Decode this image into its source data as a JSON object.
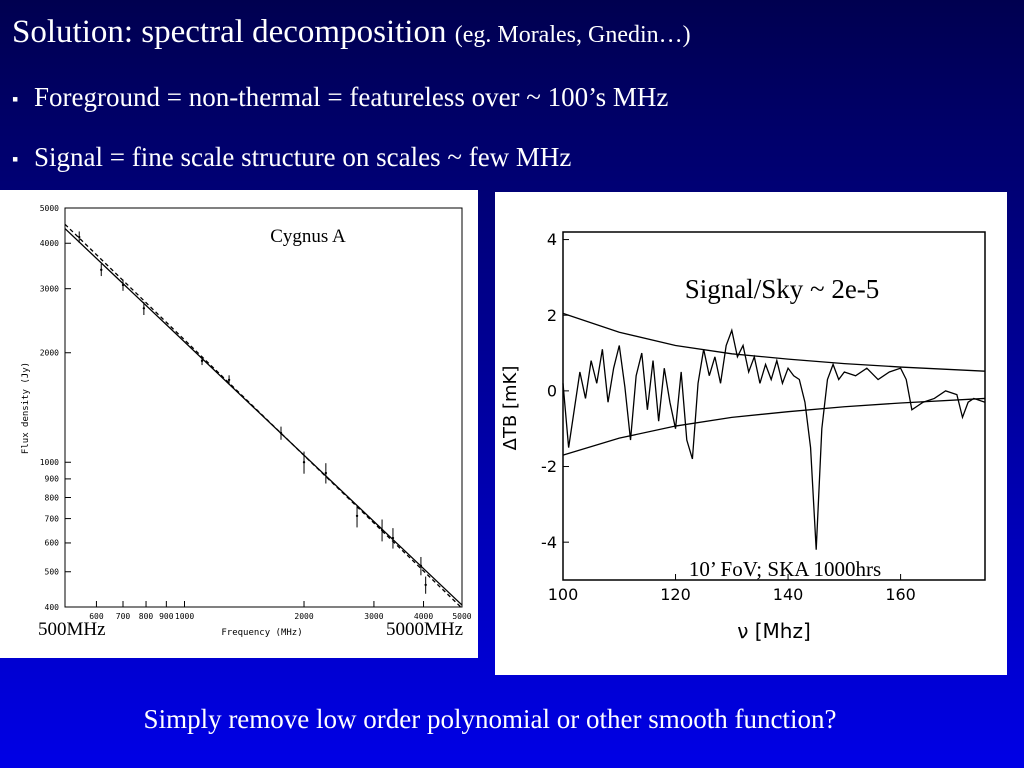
{
  "slide": {
    "title": "Solution: spectral decomposition",
    "title_note": "(eg. Morales, Gnedin…)",
    "bullets": [
      "Foreground = non-thermal = featureless over ~ 100’s MHz",
      "Signal = fine scale structure on scales ~ few MHz"
    ],
    "footer": "Simply remove low order polynomial or other smooth function?"
  },
  "chart_data": [
    {
      "type": "scatter",
      "xlabel": "Frequency (MHz)",
      "ylabel": "Flux density (Jy)",
      "annotation": "Cygnus A",
      "x_start_label": "500MHz",
      "x_end_label": "5000MHz",
      "log_x": true,
      "log_y": true,
      "color": "#000000",
      "x": [
        543,
        617,
        700,
        790,
        1107,
        1295,
        1750,
        2000,
        2270,
        2720,
        3145,
        3350,
        3940,
        4050
      ],
      "values": [
        4160,
        3380,
        3070,
        2650,
        1900,
        1684,
        1203,
        1000,
        934,
        712,
        651,
        619,
        519,
        460
      ],
      "errors": [
        150,
        130,
        110,
        110,
        50,
        50,
        50,
        70,
        60,
        50,
        45,
        40,
        30,
        25
      ],
      "fits": [
        {
          "x": [
            500,
            5000
          ],
          "values": [
            4390,
            405
          ],
          "dashed": false
        },
        {
          "x": [
            500,
            5000
          ],
          "values": [
            4510,
            397
          ],
          "dashed": true
        }
      ],
      "xlim": [
        500,
        5000
      ],
      "ylim": [
        400,
        5000
      ],
      "xticks": [
        600,
        700,
        800,
        900,
        1000,
        2000,
        3000,
        4000,
        5000
      ],
      "yticks": [
        400,
        500,
        600,
        700,
        800,
        900,
        1000,
        2000,
        3000,
        4000,
        5000
      ]
    },
    {
      "type": "line",
      "xlabel": "ν [Mhz]",
      "ylabel": "ΔTB [mK]",
      "annotation": "Signal/Sky ~ 2e-5",
      "note": "10’ FoV;  SKA 1000hrs",
      "series": [
        {
          "color": "#000000",
          "x": [
            100,
            101,
            102,
            103,
            104,
            105,
            106,
            107,
            108,
            109,
            110,
            111,
            112,
            113,
            114,
            115,
            116,
            117,
            118,
            119,
            120,
            121,
            122,
            123,
            124,
            125,
            126,
            127,
            128,
            129,
            130,
            131,
            132,
            133,
            134,
            135,
            136,
            137,
            138,
            139,
            140,
            141,
            142,
            143,
            144,
            145,
            146,
            147,
            148,
            149,
            150,
            152,
            154,
            156,
            158,
            160,
            161,
            162,
            163,
            164,
            166,
            168,
            170,
            171,
            172,
            173,
            175
          ],
          "values": [
            0.2,
            -1.5,
            -0.5,
            0.5,
            -0.2,
            0.8,
            0.2,
            1.1,
            -0.3,
            0.6,
            1.2,
            0.1,
            -1.3,
            0.4,
            1.0,
            -0.5,
            0.8,
            -0.8,
            0.6,
            -0.3,
            -1.0,
            0.5,
            -1.3,
            -1.8,
            0.2,
            1.1,
            0.4,
            0.9,
            0.2,
            1.2,
            1.6,
            0.9,
            1.2,
            0.5,
            0.9,
            0.2,
            0.7,
            0.3,
            0.8,
            0.2,
            0.6,
            0.4,
            0.3,
            -0.3,
            -1.5,
            -4.2,
            -1.0,
            0.3,
            0.7,
            0.3,
            0.5,
            0.4,
            0.6,
            0.3,
            0.5,
            0.6,
            0.3,
            -0.5,
            -0.4,
            -0.3,
            -0.2,
            0,
            -0.1,
            -0.7,
            -0.3,
            -0.2,
            -0.3
          ]
        },
        {
          "color": "#000000",
          "x": [
            100,
            110,
            120,
            130,
            140,
            150,
            160,
            175
          ],
          "values": [
            2.05,
            1.55,
            1.2,
            0.98,
            0.84,
            0.72,
            0.63,
            0.52
          ]
        },
        {
          "color": "#000000",
          "x": [
            100,
            110,
            120,
            130,
            140,
            150,
            160,
            175
          ],
          "values": [
            -1.7,
            -1.25,
            -0.93,
            -0.7,
            -0.55,
            -0.42,
            -0.32,
            -0.2
          ]
        }
      ],
      "xlim": [
        100,
        175
      ],
      "ylim": [
        -5,
        4.2
      ],
      "xticks": [
        100,
        120,
        140,
        160
      ],
      "yticks": [
        -4,
        -2,
        0,
        2,
        4
      ]
    }
  ]
}
